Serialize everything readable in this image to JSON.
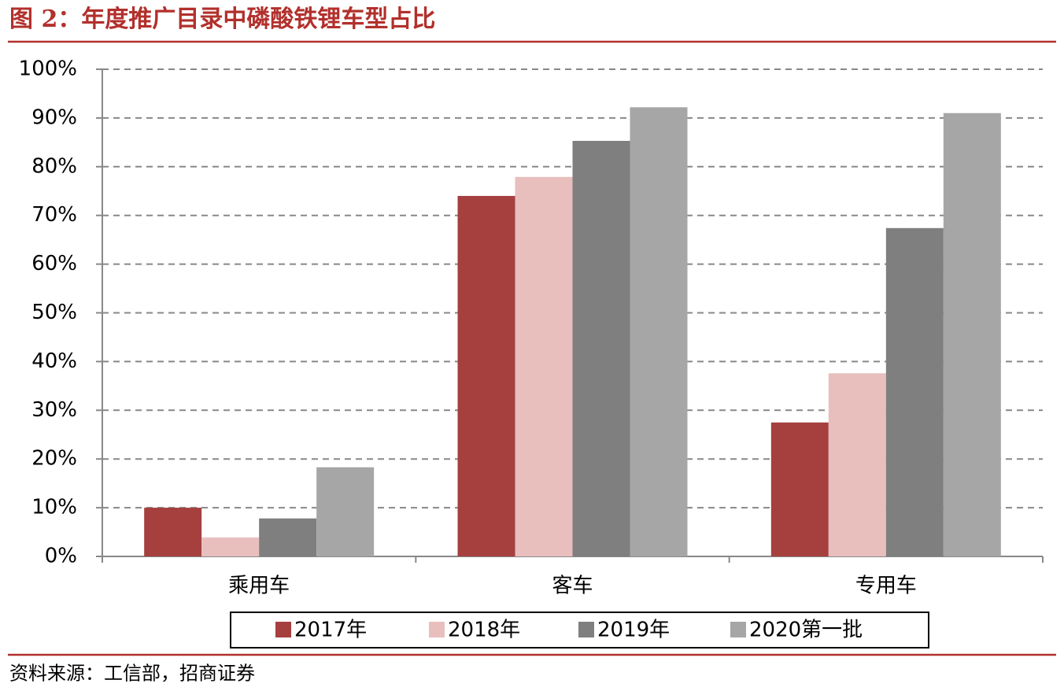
{
  "chart_data": {
    "type": "bar",
    "title": "图 2：年度推广目录中磷酸铁锂车型占比",
    "source": "资料来源：工信部，招商证券",
    "categories": [
      "乘用车",
      "客车",
      "专用车"
    ],
    "series": [
      {
        "name": "2017年",
        "color": "#a5403f",
        "values": [
          10.0,
          74.0,
          27.5
        ]
      },
      {
        "name": "2018年",
        "color": "#e8bfbd",
        "values": [
          3.9,
          77.9,
          37.6
        ]
      },
      {
        "name": "2019年",
        "color": "#7f7f7f",
        "values": [
          7.8,
          85.3,
          67.4
        ]
      },
      {
        "name": "2020第一批",
        "color": "#a6a6a6",
        "values": [
          18.3,
          92.2,
          91.0
        ]
      }
    ],
    "ylim": [
      0,
      100
    ],
    "yticks": [
      {
        "value": 0,
        "label": "0%"
      },
      {
        "value": 10,
        "label": "10%"
      },
      {
        "value": 20,
        "label": "20%"
      },
      {
        "value": 30,
        "label": "30%"
      },
      {
        "value": 40,
        "label": "40%"
      },
      {
        "value": 50,
        "label": "50%"
      },
      {
        "value": 60,
        "label": "60%"
      },
      {
        "value": 70,
        "label": "70%"
      },
      {
        "value": 80,
        "label": "80%"
      },
      {
        "value": 90,
        "label": "90%"
      },
      {
        "value": 100,
        "label": "100%"
      }
    ],
    "grid": true
  }
}
